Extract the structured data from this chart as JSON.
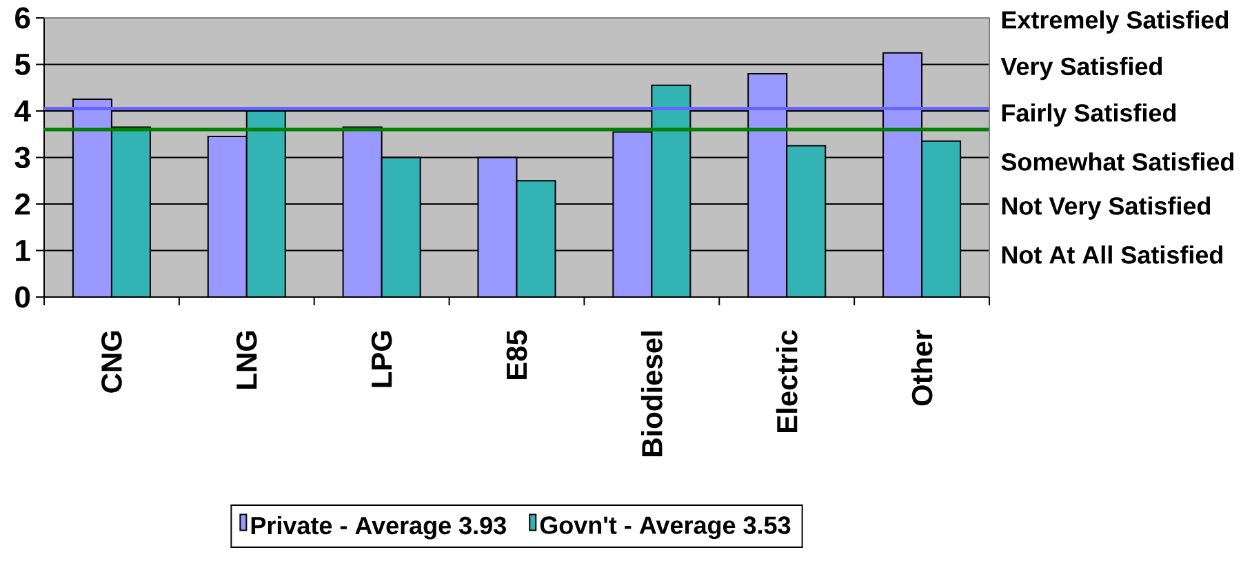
{
  "chart_data": {
    "type": "bar",
    "categories": [
      "CNG",
      "LNG",
      "LPG",
      "E85",
      "Biodiesel",
      "Electric",
      "Other"
    ],
    "series": [
      {
        "name": "Private - Average 3.93",
        "color": "#9999ff",
        "values": [
          4.25,
          3.45,
          3.65,
          3.0,
          3.55,
          4.8,
          5.25
        ]
      },
      {
        "name": "Govn't - Average 3.53",
        "color": "#33b3b3",
        "values": [
          3.65,
          4.0,
          3.0,
          2.5,
          4.55,
          3.25,
          3.35
        ]
      }
    ],
    "ylim": [
      0,
      6
    ],
    "yticks": [
      0,
      1,
      2,
      3,
      4,
      5,
      6
    ],
    "annotations": [
      "Extremely Satisfied",
      "Very Satisfied",
      "Fairly Satisfied",
      "Somewhat Satisfied",
      "Not Very Satisfied",
      "Not At All Satisfied"
    ],
    "ref_lines": [
      {
        "axis": "y",
        "value": 4.05,
        "color": "#6666ff"
      },
      {
        "axis": "y",
        "value": 3.6,
        "color": "#008000"
      }
    ],
    "grid": "y",
    "legend": "bottom"
  }
}
